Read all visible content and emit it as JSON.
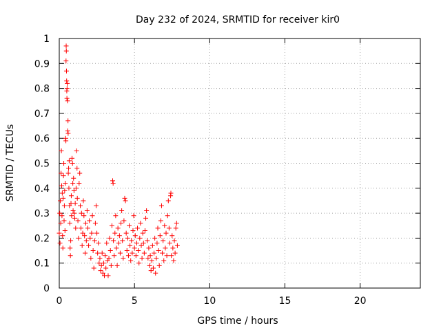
{
  "chart_data": {
    "type": "scatter",
    "title": "Day 232 of 2024, SRMTID for receiver kir0",
    "xlabel": "GPS time / hours",
    "ylabel": "SRMTID / TECUs",
    "xlim": [
      0,
      24
    ],
    "ylim": [
      0,
      1
    ],
    "x_ticks": [
      0,
      5,
      10,
      15,
      20
    ],
    "x_tick_labels": [
      "0",
      "5",
      "10",
      "15",
      "20"
    ],
    "y_ticks": [
      0,
      0.1,
      0.2,
      0.3,
      0.4,
      0.5,
      0.6,
      0.7,
      0.8,
      0.9,
      1
    ],
    "y_tick_labels": [
      "0",
      "0.1",
      "0.2",
      "0.3",
      "0.4",
      "0.5",
      "0.6",
      "0.7",
      "0.8",
      "0.9",
      "1"
    ],
    "grid": true,
    "marker": "+",
    "series": [
      {
        "name": "SRMTID",
        "color": "#ff0000",
        "points": [
          [
            0.0,
            0.22
          ],
          [
            0.03,
            0.3
          ],
          [
            0.05,
            0.18
          ],
          [
            0.07,
            0.35
          ],
          [
            0.1,
            0.26
          ],
          [
            0.12,
            0.46
          ],
          [
            0.14,
            0.55
          ],
          [
            0.16,
            0.41
          ],
          [
            0.18,
            0.29
          ],
          [
            0.2,
            0.38
          ],
          [
            0.22,
            0.21
          ],
          [
            0.24,
            0.16
          ],
          [
            0.26,
            0.36
          ],
          [
            0.28,
            0.45
          ],
          [
            0.3,
            0.5
          ],
          [
            0.32,
            0.27
          ],
          [
            0.34,
            0.33
          ],
          [
            0.36,
            0.39
          ],
          [
            0.38,
            0.23
          ],
          [
            0.4,
            0.42
          ],
          [
            0.42,
            0.6
          ],
          [
            0.44,
            0.59
          ],
          [
            0.45,
            0.91
          ],
          [
            0.46,
            0.97
          ],
          [
            0.47,
            0.95
          ],
          [
            0.48,
            0.87
          ],
          [
            0.49,
            0.83
          ],
          [
            0.5,
            0.79
          ],
          [
            0.51,
            0.76
          ],
          [
            0.52,
            0.8
          ],
          [
            0.53,
            0.82
          ],
          [
            0.55,
            0.75
          ],
          [
            0.56,
            0.63
          ],
          [
            0.58,
            0.67
          ],
          [
            0.59,
            0.62
          ],
          [
            0.6,
            0.46
          ],
          [
            0.62,
            0.48
          ],
          [
            0.64,
            0.4
          ],
          [
            0.66,
            0.51
          ],
          [
            0.68,
            0.33
          ],
          [
            0.7,
            0.26
          ],
          [
            0.72,
            0.16
          ],
          [
            0.74,
            0.13
          ],
          [
            0.76,
            0.19
          ],
          [
            0.78,
            0.34
          ],
          [
            0.8,
            0.37
          ],
          [
            0.82,
            0.29
          ],
          [
            0.85,
            0.52
          ],
          [
            0.88,
            0.5
          ],
          [
            0.9,
            0.42
          ],
          [
            0.92,
            0.31
          ],
          [
            0.95,
            0.44
          ],
          [
            0.98,
            0.39
          ],
          [
            1.0,
            0.3
          ],
          [
            1.03,
            0.28
          ],
          [
            1.06,
            0.34
          ],
          [
            1.09,
            0.24
          ],
          [
            1.12,
            0.4
          ],
          [
            1.15,
            0.55
          ],
          [
            1.18,
            0.48
          ],
          [
            1.2,
            0.36
          ],
          [
            1.24,
            0.27
          ],
          [
            1.28,
            0.2
          ],
          [
            1.32,
            0.42
          ],
          [
            1.36,
            0.46
          ],
          [
            1.4,
            0.33
          ],
          [
            1.44,
            0.24
          ],
          [
            1.48,
            0.3
          ],
          [
            1.52,
            0.17
          ],
          [
            1.56,
            0.22
          ],
          [
            1.6,
            0.35
          ],
          [
            1.64,
            0.29
          ],
          [
            1.68,
            0.21
          ],
          [
            1.72,
            0.14
          ],
          [
            1.76,
            0.26
          ],
          [
            1.8,
            0.19
          ],
          [
            1.85,
            0.31
          ],
          [
            1.9,
            0.24
          ],
          [
            1.95,
            0.17
          ],
          [
            2.0,
            0.27
          ],
          [
            2.05,
            0.2
          ],
          [
            2.1,
            0.12
          ],
          [
            2.15,
            0.22
          ],
          [
            2.2,
            0.29
          ],
          [
            2.25,
            0.15
          ],
          [
            2.3,
            0.08
          ],
          [
            2.35,
            0.19
          ],
          [
            2.4,
            0.26
          ],
          [
            2.45,
            0.33
          ],
          [
            2.5,
            0.22
          ],
          [
            2.55,
            0.14
          ],
          [
            2.6,
            0.18
          ],
          [
            2.65,
            0.1
          ],
          [
            2.7,
            0.12
          ],
          [
            2.75,
            0.07
          ],
          [
            2.8,
            0.09
          ],
          [
            2.85,
            0.14
          ],
          [
            2.9,
            0.06
          ],
          [
            2.95,
            0.1
          ],
          [
            3.0,
            0.05
          ],
          [
            3.05,
            0.13
          ],
          [
            3.1,
            0.08
          ],
          [
            3.15,
            0.18
          ],
          [
            3.2,
            0.11
          ],
          [
            3.25,
            0.05
          ],
          [
            3.3,
            0.12
          ],
          [
            3.35,
            0.2
          ],
          [
            3.4,
            0.15
          ],
          [
            3.45,
            0.09
          ],
          [
            3.5,
            0.25
          ],
          [
            3.55,
            0.43
          ],
          [
            3.58,
            0.42
          ],
          [
            3.6,
            0.19
          ],
          [
            3.65,
            0.13
          ],
          [
            3.7,
            0.22
          ],
          [
            3.75,
            0.29
          ],
          [
            3.8,
            0.16
          ],
          [
            3.85,
            0.09
          ],
          [
            3.9,
            0.24
          ],
          [
            3.95,
            0.18
          ],
          [
            4.0,
            0.21
          ],
          [
            4.05,
            0.14
          ],
          [
            4.1,
            0.26
          ],
          [
            4.15,
            0.31
          ],
          [
            4.2,
            0.19
          ],
          [
            4.25,
            0.12
          ],
          [
            4.3,
            0.27
          ],
          [
            4.35,
            0.36
          ],
          [
            4.4,
            0.35
          ],
          [
            4.45,
            0.22
          ],
          [
            4.5,
            0.15
          ],
          [
            4.55,
            0.2
          ],
          [
            4.6,
            0.13
          ],
          [
            4.65,
            0.25
          ],
          [
            4.7,
            0.17
          ],
          [
            4.75,
            0.11
          ],
          [
            4.8,
            0.19
          ],
          [
            4.85,
            0.14
          ],
          [
            4.9,
            0.23
          ],
          [
            4.95,
            0.29
          ],
          [
            5.0,
            0.16
          ],
          [
            5.05,
            0.21
          ],
          [
            5.1,
            0.13
          ],
          [
            5.15,
            0.18
          ],
          [
            5.2,
            0.24
          ],
          [
            5.25,
            0.15
          ],
          [
            5.3,
            0.1
          ],
          [
            5.35,
            0.2
          ],
          [
            5.4,
            0.26
          ],
          [
            5.45,
            0.17
          ],
          [
            5.5,
            0.12
          ],
          [
            5.55,
            0.22
          ],
          [
            5.6,
            0.18
          ],
          [
            5.65,
            0.14
          ],
          [
            5.7,
            0.23
          ],
          [
            5.75,
            0.28
          ],
          [
            5.8,
            0.31
          ],
          [
            5.85,
            0.19
          ],
          [
            5.9,
            0.12
          ],
          [
            5.95,
            0.16
          ],
          [
            6.0,
            0.09
          ],
          [
            6.05,
            0.13
          ],
          [
            6.1,
            0.07
          ],
          [
            6.15,
            0.11
          ],
          [
            6.2,
            0.17
          ],
          [
            6.25,
            0.08
          ],
          [
            6.3,
            0.14
          ],
          [
            6.35,
            0.2
          ],
          [
            6.4,
            0.06
          ],
          [
            6.45,
            0.12
          ],
          [
            6.5,
            0.18
          ],
          [
            6.55,
            0.24
          ],
          [
            6.6,
            0.15
          ],
          [
            6.65,
            0.09
          ],
          [
            6.7,
            0.21
          ],
          [
            6.75,
            0.27
          ],
          [
            6.8,
            0.33
          ],
          [
            6.85,
            0.14
          ],
          [
            6.9,
            0.19
          ],
          [
            6.95,
            0.11
          ],
          [
            7.0,
            0.25
          ],
          [
            7.05,
            0.16
          ],
          [
            7.1,
            0.22
          ],
          [
            7.15,
            0.13
          ],
          [
            7.2,
            0.29
          ],
          [
            7.25,
            0.35
          ],
          [
            7.3,
            0.24
          ],
          [
            7.35,
            0.18
          ],
          [
            7.4,
            0.37
          ],
          [
            7.42,
            0.38
          ],
          [
            7.45,
            0.13
          ],
          [
            7.5,
            0.21
          ],
          [
            7.55,
            0.16
          ],
          [
            7.6,
            0.11
          ],
          [
            7.65,
            0.19
          ],
          [
            7.7,
            0.14
          ],
          [
            7.75,
            0.24
          ],
          [
            7.8,
            0.26
          ],
          [
            7.85,
            0.17
          ]
        ]
      }
    ]
  }
}
